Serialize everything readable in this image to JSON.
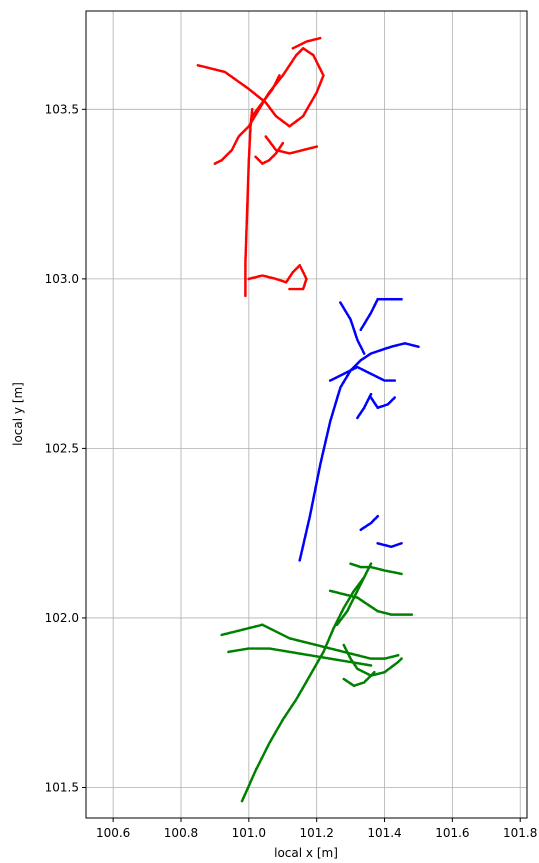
{
  "chart_data": {
    "type": "scatter",
    "xlabel": "local x [m]",
    "ylabel": "local y [m]",
    "xlim": [
      100.52,
      101.82
    ],
    "ylim": [
      101.41,
      103.79
    ],
    "xticks": [
      100.6,
      100.8,
      101.0,
      101.2,
      101.4,
      101.6,
      101.8
    ],
    "xtick_labels": [
      "100.6",
      "100.8",
      "101.0",
      "101.2",
      "101.4",
      "101.6",
      "101.8"
    ],
    "yticks": [
      101.5,
      102.0,
      102.5,
      103.0,
      103.5
    ],
    "ytick_labels": [
      "101.5",
      "102.0",
      "102.5",
      "103.0",
      "103.5"
    ],
    "grid": true,
    "series": [
      {
        "color": "#ff0000",
        "paths": [
          [
            [
              100.99,
              102.95
            ],
            [
              100.99,
              103.05
            ],
            [
              100.995,
              103.2
            ],
            [
              101.0,
              103.35
            ],
            [
              101.005,
              103.45
            ],
            [
              101.01,
              103.5
            ]
          ],
          [
            [
              100.85,
              103.63
            ],
            [
              100.93,
              103.61
            ],
            [
              101.0,
              103.56
            ],
            [
              101.05,
              103.52
            ],
            [
              101.08,
              103.48
            ],
            [
              101.12,
              103.45
            ],
            [
              101.16,
              103.48
            ],
            [
              101.2,
              103.55
            ],
            [
              101.22,
              103.6
            ],
            [
              101.19,
              103.66
            ],
            [
              101.16,
              103.68
            ],
            [
              101.14,
              103.66
            ],
            [
              101.1,
              103.6
            ],
            [
              101.06,
              103.55
            ],
            [
              101.03,
              103.5
            ],
            [
              101.0,
              103.45
            ],
            [
              100.97,
              103.42
            ],
            [
              100.95,
              103.38
            ],
            [
              100.92,
              103.35
            ],
            [
              100.9,
              103.34
            ]
          ],
          [
            [
              101.13,
              103.68
            ],
            [
              101.17,
              103.7
            ],
            [
              101.21,
              103.71
            ]
          ],
          [
            [
              101.05,
              103.42
            ],
            [
              101.08,
              103.38
            ],
            [
              101.12,
              103.37
            ],
            [
              101.16,
              103.38
            ],
            [
              101.2,
              103.39
            ]
          ],
          [
            [
              101.02,
              103.36
            ],
            [
              101.04,
              103.34
            ],
            [
              101.06,
              103.35
            ],
            [
              101.08,
              103.37
            ],
            [
              101.1,
              103.4
            ]
          ],
          [
            [
              101.0,
              103.0
            ],
            [
              101.04,
              103.01
            ],
            [
              101.08,
              103.0
            ],
            [
              101.11,
              102.99
            ],
            [
              101.13,
              103.02
            ],
            [
              101.15,
              103.04
            ],
            [
              101.17,
              103.0
            ],
            [
              101.16,
              102.97
            ],
            [
              101.12,
              102.97
            ]
          ],
          [
            [
              101.01,
              103.48
            ],
            [
              101.04,
              103.52
            ],
            [
              101.07,
              103.56
            ],
            [
              101.09,
              103.6
            ]
          ]
        ]
      },
      {
        "color": "#0000ff",
        "paths": [
          [
            [
              101.15,
              102.17
            ],
            [
              101.18,
              102.3
            ],
            [
              101.21,
              102.45
            ],
            [
              101.24,
              102.58
            ],
            [
              101.27,
              102.68
            ],
            [
              101.3,
              102.73
            ],
            [
              101.33,
              102.76
            ],
            [
              101.36,
              102.78
            ],
            [
              101.39,
              102.79
            ],
            [
              101.42,
              102.8
            ],
            [
              101.46,
              102.81
            ],
            [
              101.5,
              102.8
            ]
          ],
          [
            [
              101.24,
              102.7
            ],
            [
              101.28,
              102.72
            ],
            [
              101.32,
              102.74
            ],
            [
              101.36,
              102.72
            ],
            [
              101.4,
              102.7
            ],
            [
              101.43,
              102.7
            ]
          ],
          [
            [
              101.27,
              102.93
            ],
            [
              101.3,
              102.88
            ],
            [
              101.32,
              102.82
            ],
            [
              101.34,
              102.78
            ]
          ],
          [
            [
              101.33,
              102.85
            ],
            [
              101.36,
              102.9
            ],
            [
              101.38,
              102.94
            ],
            [
              101.42,
              102.94
            ],
            [
              101.45,
              102.94
            ]
          ],
          [
            [
              101.36,
              102.65
            ],
            [
              101.38,
              102.62
            ],
            [
              101.41,
              102.63
            ],
            [
              101.43,
              102.65
            ]
          ],
          [
            [
              101.32,
              102.59
            ],
            [
              101.34,
              102.62
            ],
            [
              101.36,
              102.66
            ]
          ],
          [
            [
              101.33,
              102.26
            ],
            [
              101.36,
              102.28
            ],
            [
              101.38,
              102.3
            ]
          ],
          [
            [
              101.38,
              102.22
            ],
            [
              101.42,
              102.21
            ],
            [
              101.45,
              102.22
            ]
          ]
        ]
      },
      {
        "color": "#008000",
        "paths": [
          [
            [
              100.98,
              101.46
            ],
            [
              101.02,
              101.55
            ],
            [
              101.06,
              101.63
            ],
            [
              101.1,
              101.7
            ],
            [
              101.14,
              101.76
            ],
            [
              101.18,
              101.83
            ],
            [
              101.22,
              101.9
            ],
            [
              101.25,
              101.97
            ],
            [
              101.28,
              102.03
            ],
            [
              101.31,
              102.08
            ],
            [
              101.34,
              102.12
            ],
            [
              101.36,
              102.16
            ]
          ],
          [
            [
              100.92,
              101.95
            ],
            [
              100.96,
              101.96
            ],
            [
              101.0,
              101.97
            ],
            [
              101.04,
              101.98
            ],
            [
              101.08,
              101.96
            ],
            [
              101.12,
              101.94
            ],
            [
              101.16,
              101.93
            ],
            [
              101.2,
              101.92
            ],
            [
              101.24,
              101.91
            ],
            [
              101.28,
              101.9
            ],
            [
              101.32,
              101.89
            ],
            [
              101.36,
              101.88
            ],
            [
              101.4,
              101.88
            ],
            [
              101.44,
              101.89
            ]
          ],
          [
            [
              100.94,
              101.9
            ],
            [
              101.0,
              101.91
            ],
            [
              101.06,
              101.91
            ],
            [
              101.12,
              101.9
            ],
            [
              101.18,
              101.89
            ],
            [
              101.24,
              101.88
            ],
            [
              101.3,
              101.87
            ],
            [
              101.36,
              101.86
            ]
          ],
          [
            [
              101.24,
              102.08
            ],
            [
              101.28,
              102.07
            ],
            [
              101.32,
              102.06
            ],
            [
              101.35,
              102.04
            ],
            [
              101.38,
              102.02
            ],
            [
              101.42,
              102.01
            ],
            [
              101.46,
              102.01
            ],
            [
              101.48,
              102.01
            ]
          ],
          [
            [
              101.28,
              101.92
            ],
            [
              101.3,
              101.88
            ],
            [
              101.32,
              101.85
            ],
            [
              101.36,
              101.83
            ],
            [
              101.4,
              101.84
            ],
            [
              101.44,
              101.87
            ],
            [
              101.45,
              101.88
            ]
          ],
          [
            [
              101.28,
              101.82
            ],
            [
              101.31,
              101.8
            ],
            [
              101.34,
              101.81
            ],
            [
              101.37,
              101.84
            ]
          ],
          [
            [
              101.26,
              101.98
            ],
            [
              101.29,
              102.02
            ],
            [
              101.32,
              102.08
            ],
            [
              101.34,
              102.12
            ]
          ],
          [
            [
              101.3,
              102.16
            ],
            [
              101.33,
              102.15
            ],
            [
              101.36,
              102.15
            ],
            [
              101.4,
              102.14
            ],
            [
              101.45,
              102.13
            ]
          ]
        ]
      }
    ]
  }
}
